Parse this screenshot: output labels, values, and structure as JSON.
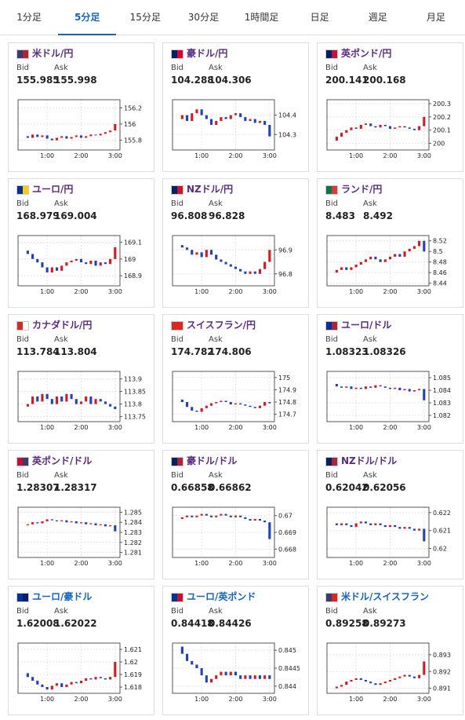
{
  "tabs": [
    "1分足",
    "5分足",
    "15分足",
    "30分足",
    "1時間足",
    "日足",
    "週足",
    "月足"
  ],
  "active_tab": 1,
  "labels": {
    "bid": "Bid",
    "ask": "Ask"
  },
  "time_axis": {
    "xlim": [
      -1,
      20
    ],
    "xticks": [
      {
        "value": 5,
        "label": "1:00"
      },
      {
        "value": 12,
        "label": "2:00"
      },
      {
        "value": 19,
        "label": "3:00"
      }
    ]
  },
  "candle_colors": {
    "up": "#e0141e",
    "down": "#1f3fc4"
  },
  "panels": [
    {
      "title": "米ドル/円",
      "color": "#5b2a86",
      "flag": [
        "#3c3b6e",
        "#b22234"
      ],
      "bid": 155.985,
      "ask": 155.998,
      "ylim": [
        155.68,
        156.3
      ],
      "yticks": [
        155.8,
        156,
        156.2
      ],
      "closes": [
        155.85,
        155.83,
        155.87,
        155.84,
        155.86,
        155.82,
        155.8,
        155.83,
        155.85,
        155.82,
        155.84,
        155.86,
        155.83,
        155.85,
        155.87,
        155.86,
        155.88,
        155.9,
        155.92,
        156.0
      ]
    },
    {
      "title": "豪ドル/円",
      "color": "#5b2a86",
      "flag": [
        "#012169",
        "#e4002b"
      ],
      "bid": 104.288,
      "ask": 104.306,
      "ylim": [
        104.22,
        104.48
      ],
      "yticks": [
        104.3,
        104.4
      ],
      "closes": [
        104.38,
        104.4,
        104.37,
        104.41,
        104.43,
        104.4,
        104.38,
        104.35,
        104.37,
        104.39,
        104.38,
        104.4,
        104.41,
        104.39,
        104.37,
        104.38,
        104.36,
        104.37,
        104.35,
        104.29
      ]
    },
    {
      "title": "英ポンド/円",
      "color": "#5b2a86",
      "flag": [
        "#012169",
        "#c8102e"
      ],
      "bid": 200.141,
      "ask": 200.168,
      "ylim": [
        199.95,
        200.33
      ],
      "yticks": [
        200,
        200.1,
        200.2,
        200.3
      ],
      "closes": [
        200.02,
        200.05,
        200.08,
        200.1,
        200.12,
        200.11,
        200.14,
        200.15,
        200.13,
        200.12,
        200.14,
        200.13,
        200.11,
        200.12,
        200.13,
        200.12,
        200.11,
        200.1,
        200.13,
        200.2
      ]
    },
    {
      "title": "ユーロ/円",
      "color": "#5b2a86",
      "flag": [
        "#003399",
        "#ffcc00"
      ],
      "bid": 168.979,
      "ask": 169.004,
      "ylim": [
        168.84,
        169.14
      ],
      "yticks": [
        168.9,
        169,
        169.1
      ],
      "closes": [
        169.05,
        169.03,
        169.0,
        168.98,
        168.95,
        168.92,
        168.95,
        168.93,
        168.96,
        168.98,
        168.99,
        169.0,
        168.98,
        168.97,
        168.99,
        168.96,
        168.98,
        168.97,
        169.0,
        169.07
      ]
    },
    {
      "title": "NZドル/円",
      "color": "#5b2a86",
      "flag": [
        "#012169",
        "#cc142b"
      ],
      "bid": 96.808,
      "ask": 96.828,
      "ylim": [
        96.75,
        96.96
      ],
      "yticks": [
        96.8,
        96.9
      ],
      "closes": [
        96.92,
        96.91,
        96.9,
        96.88,
        96.89,
        96.87,
        96.9,
        96.88,
        96.86,
        96.85,
        96.84,
        96.83,
        96.82,
        96.81,
        96.8,
        96.81,
        96.8,
        96.82,
        96.85,
        96.9
      ]
    },
    {
      "title": "ランド/円",
      "color": "#5b2a86",
      "flag": [
        "#007a4d",
        "#de3831"
      ],
      "bid": 8.483,
      "ask": 8.492,
      "ylim": [
        8.435,
        8.53
      ],
      "yticks": [
        8.44,
        8.46,
        8.48,
        8.5,
        8.52
      ],
      "closes": [
        8.46,
        8.465,
        8.47,
        8.465,
        8.47,
        8.475,
        8.48,
        8.485,
        8.49,
        8.485,
        8.48,
        8.485,
        8.49,
        8.495,
        8.49,
        8.5,
        8.505,
        8.51,
        8.52,
        8.5
      ]
    },
    {
      "title": "カナダドル/円",
      "color": "#5b2a86",
      "flag": [
        "#d52b1e",
        "#ffffff"
      ],
      "bid": 113.784,
      "ask": 113.804,
      "ylim": [
        113.73,
        113.93
      ],
      "yticks": [
        113.75,
        113.8,
        113.85,
        113.9
      ],
      "closes": [
        113.79,
        113.8,
        113.83,
        113.81,
        113.84,
        113.82,
        113.8,
        113.83,
        113.81,
        113.84,
        113.82,
        113.8,
        113.81,
        113.83,
        113.8,
        113.82,
        113.81,
        113.8,
        113.79,
        113.78
      ]
    },
    {
      "title": "スイスフラン/円",
      "color": "#5b2a86",
      "flag": [
        "#da291c",
        "#da291c"
      ],
      "bid": 174.782,
      "ask": 174.806,
      "ylim": [
        174.64,
        175.05
      ],
      "yticks": [
        174.7,
        174.8,
        174.9,
        175
      ],
      "closes": [
        174.82,
        174.8,
        174.76,
        174.73,
        174.72,
        174.75,
        174.77,
        174.79,
        174.8,
        174.81,
        174.8,
        174.78,
        174.79,
        174.78,
        174.77,
        174.76,
        174.75,
        174.77,
        174.8,
        174.79
      ]
    },
    {
      "title": "ユーロ/ドル",
      "color": "#5b2a86",
      "flag": [
        "#003399",
        "#b22234"
      ],
      "bid": 1.08323,
      "ask": 1.08326,
      "ylim": [
        1.0815,
        1.0855
      ],
      "yticks": [
        1.082,
        1.083,
        1.084,
        1.085
      ],
      "closes": [
        1.0845,
        1.0843,
        1.0842,
        1.0843,
        1.0841,
        1.0842,
        1.0841,
        1.0843,
        1.0842,
        1.0844,
        1.0843,
        1.0842,
        1.0841,
        1.0842,
        1.084,
        1.0841,
        1.0839,
        1.084,
        1.0841,
        1.0832
      ]
    },
    {
      "title": "英ポンド/ドル",
      "color": "#5b2a86",
      "flag": [
        "#c8102e",
        "#3c3b6e"
      ],
      "bid": 1.28307,
      "ask": 1.28317,
      "ylim": [
        1.2805,
        1.2855
      ],
      "yticks": [
        1.281,
        1.282,
        1.283,
        1.284,
        1.285
      ],
      "closes": [
        1.2837,
        1.2838,
        1.284,
        1.2839,
        1.2841,
        1.2843,
        1.2842,
        1.2841,
        1.2842,
        1.284,
        1.2841,
        1.2839,
        1.284,
        1.2838,
        1.2839,
        1.2837,
        1.2838,
        1.2836,
        1.2837,
        1.2831
      ]
    },
    {
      "title": "豪ドル/ドル",
      "color": "#5b2a86",
      "flag": [
        "#012169",
        "#b22234"
      ],
      "bid": 0.66858,
      "ask": 0.66862,
      "ylim": [
        0.6675,
        0.6705
      ],
      "yticks": [
        0.668,
        0.669,
        0.67
      ],
      "closes": [
        0.6698,
        0.6699,
        0.67,
        0.6699,
        0.67,
        0.6701,
        0.67,
        0.6699,
        0.67,
        0.6701,
        0.67,
        0.6699,
        0.67,
        0.6699,
        0.6698,
        0.6697,
        0.6698,
        0.6697,
        0.6696,
        0.6686
      ]
    },
    {
      "title": "NZドル/ドル",
      "color": "#5b2a86",
      "flag": [
        "#012169",
        "#b22234"
      ],
      "bid": 0.62042,
      "ask": 0.62056,
      "ylim": [
        0.6195,
        0.6223
      ],
      "yticks": [
        0.62,
        0.621,
        0.622
      ],
      "closes": [
        0.6214,
        0.6213,
        0.6214,
        0.6213,
        0.6212,
        0.6214,
        0.6215,
        0.6214,
        0.6213,
        0.6214,
        0.6213,
        0.6212,
        0.6213,
        0.6212,
        0.6211,
        0.6212,
        0.6211,
        0.621,
        0.6211,
        0.6204
      ]
    },
    {
      "title": "ユーロ/豪ドル",
      "color": "#1565c0",
      "flag": [
        "#003399",
        "#012169"
      ],
      "bid": 1.62008,
      "ask": 1.62022,
      "ylim": [
        1.6175,
        1.6215
      ],
      "yticks": [
        1.618,
        1.619,
        1.62,
        1.621
      ],
      "closes": [
        1.6191,
        1.6188,
        1.6185,
        1.6182,
        1.618,
        1.6178,
        1.6181,
        1.6183,
        1.618,
        1.6182,
        1.6184,
        1.6183,
        1.6185,
        1.6187,
        1.6186,
        1.6188,
        1.6187,
        1.6186,
        1.6188,
        1.62
      ]
    },
    {
      "title": "ユーロ/英ポンド",
      "color": "#1565c0",
      "flag": [
        "#003399",
        "#c8102e"
      ],
      "bid": 0.84418,
      "ask": 0.84426,
      "ylim": [
        0.8438,
        0.8452
      ],
      "yticks": [
        0.844,
        0.8445,
        0.845
      ],
      "closes": [
        0.8451,
        0.8449,
        0.8447,
        0.8446,
        0.8445,
        0.8443,
        0.8441,
        0.8442,
        0.8443,
        0.8444,
        0.8443,
        0.8444,
        0.8443,
        0.8442,
        0.8443,
        0.8442,
        0.8443,
        0.8442,
        0.8443,
        0.8442
      ]
    },
    {
      "title": "米ドル/スイスフラン",
      "color": "#1565c0",
      "flag": [
        "#3c3b6e",
        "#da291c"
      ],
      "bid": 0.89258,
      "ask": 0.89273,
      "ylim": [
        0.8907,
        0.8937
      ],
      "yticks": [
        0.891,
        0.892,
        0.893
      ],
      "closes": [
        0.891,
        0.8911,
        0.8912,
        0.8914,
        0.8915,
        0.8916,
        0.8915,
        0.8914,
        0.8913,
        0.8912,
        0.8913,
        0.8914,
        0.8915,
        0.8916,
        0.8917,
        0.8918,
        0.8917,
        0.8916,
        0.8918,
        0.8926
      ]
    }
  ]
}
